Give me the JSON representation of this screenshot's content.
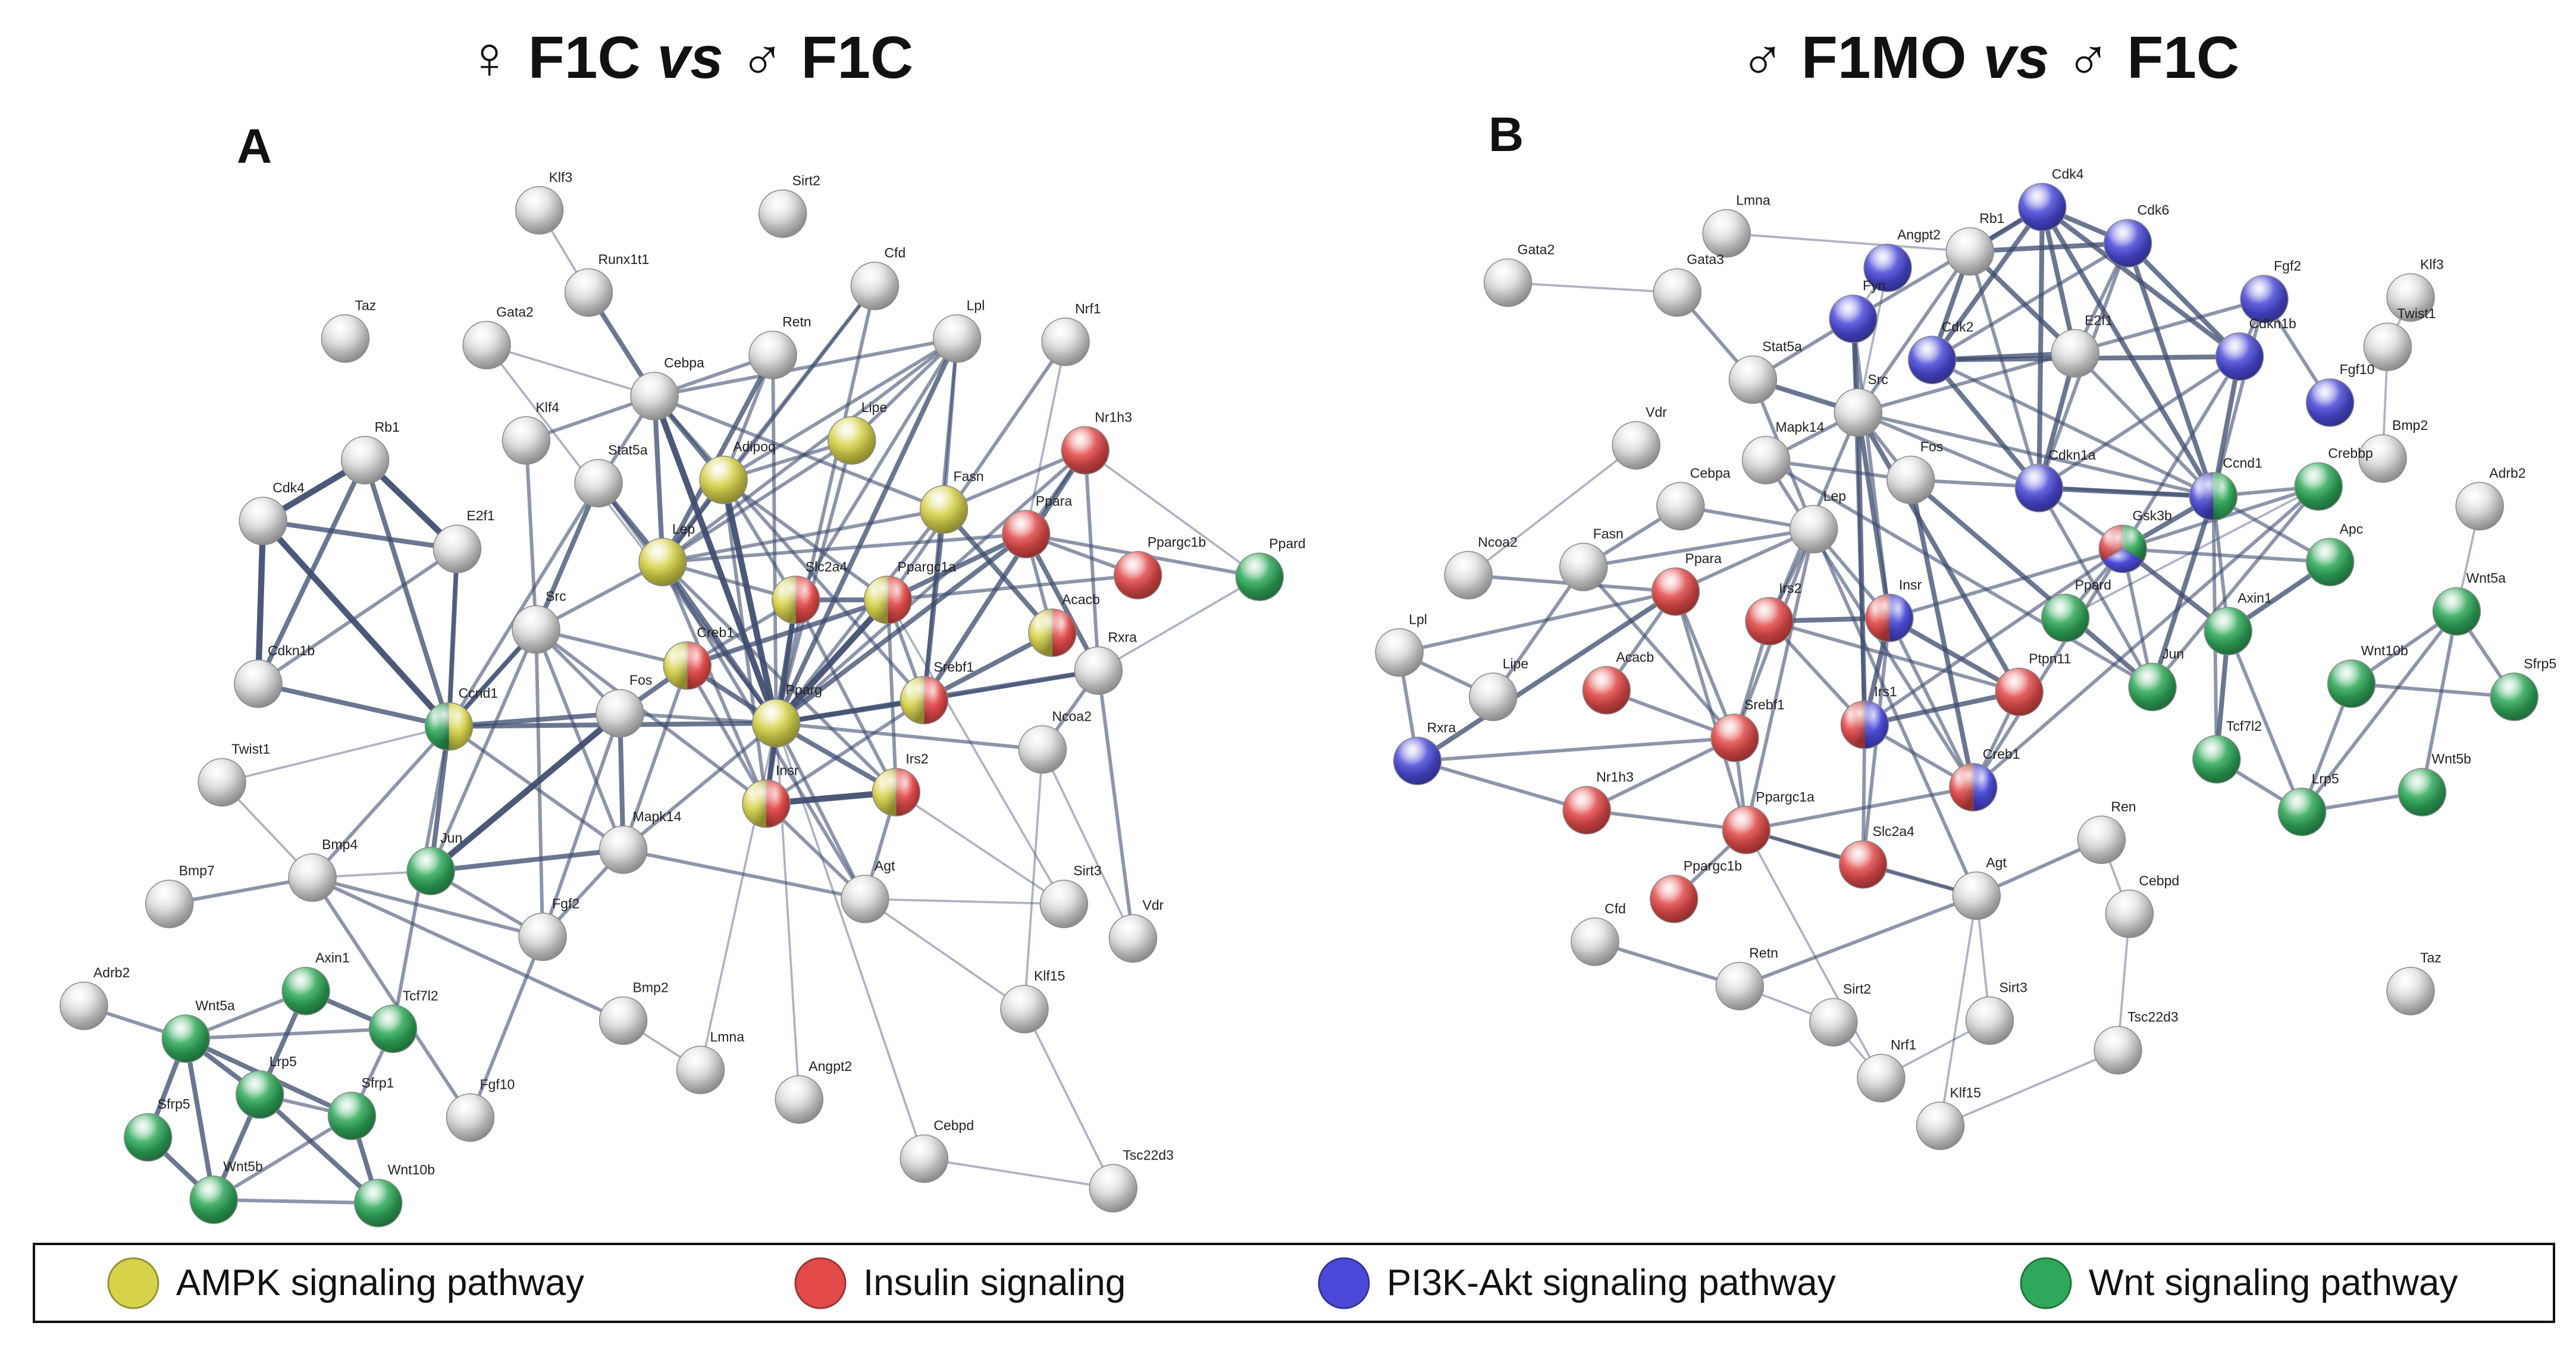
{
  "panels": [
    {
      "letter": "A",
      "title": {
        "sym1": "♀",
        "pre": "F1C",
        "vs": "vs",
        "sym2": "♂",
        "post": "F1C"
      },
      "nodes": [
        {
          "id": "Klf3",
          "color": "gray"
        },
        {
          "id": "Sirt2",
          "color": "gray"
        },
        {
          "id": "Runx1t1",
          "color": "gray"
        },
        {
          "id": "Taz",
          "color": "gray"
        },
        {
          "id": "Gata2",
          "color": "gray"
        },
        {
          "id": "Cfd",
          "color": "gray"
        },
        {
          "id": "Retn",
          "color": "gray"
        },
        {
          "id": "Lpl",
          "color": "gray"
        },
        {
          "id": "Nrf1",
          "color": "gray"
        },
        {
          "id": "Cebpa",
          "color": "gray"
        },
        {
          "id": "Klf4",
          "color": "gray"
        },
        {
          "id": "Lipe",
          "color": "yellow"
        },
        {
          "id": "Adipoq",
          "color": "yellow"
        },
        {
          "id": "Nr1h3",
          "color": "red"
        },
        {
          "id": "Rb1",
          "color": "gray"
        },
        {
          "id": "Stat5a",
          "color": "gray"
        },
        {
          "id": "Fasn",
          "color": "yellow"
        },
        {
          "id": "Ppara",
          "color": "red"
        },
        {
          "id": "Ppargc1b",
          "color": "red"
        },
        {
          "id": "Ppard",
          "color": "green"
        },
        {
          "id": "Cdk4",
          "color": "gray"
        },
        {
          "id": "E2f1",
          "color": "gray"
        },
        {
          "id": "Lep",
          "color": "yellow"
        },
        {
          "id": "Slc2a4",
          "color": "yellow-red"
        },
        {
          "id": "Ppargc1a",
          "color": "yellow-red"
        },
        {
          "id": "Src",
          "color": "gray"
        },
        {
          "id": "Creb1",
          "color": "yellow-red"
        },
        {
          "id": "Acacb",
          "color": "yellow-red"
        },
        {
          "id": "Rxra",
          "color": "gray"
        },
        {
          "id": "Cdkn1b",
          "color": "gray"
        },
        {
          "id": "Fos",
          "color": "gray"
        },
        {
          "id": "Srebf1",
          "color": "yellow-red"
        },
        {
          "id": "Ccnd1",
          "color": "green-yellow"
        },
        {
          "id": "Pparg",
          "color": "yellow"
        },
        {
          "id": "Ncoa2",
          "color": "gray"
        },
        {
          "id": "Twist1",
          "color": "gray"
        },
        {
          "id": "Insr",
          "color": "yellow-red"
        },
        {
          "id": "Irs2",
          "color": "yellow-red"
        },
        {
          "id": "Mapk14",
          "color": "gray"
        },
        {
          "id": "Bmp4",
          "color": "gray"
        },
        {
          "id": "Jun",
          "color": "green"
        },
        {
          "id": "Bmp7",
          "color": "gray"
        },
        {
          "id": "Agt",
          "color": "gray"
        },
        {
          "id": "Sirt3",
          "color": "gray"
        },
        {
          "id": "Fgf2",
          "color": "gray"
        },
        {
          "id": "Vdr",
          "color": "gray"
        },
        {
          "id": "Adrb2",
          "color": "gray"
        },
        {
          "id": "Axin1",
          "color": "green"
        },
        {
          "id": "Tcf7l2",
          "color": "green"
        },
        {
          "id": "Klf15",
          "color": "gray"
        },
        {
          "id": "Wnt5a",
          "color": "green"
        },
        {
          "id": "Bmp2",
          "color": "gray"
        },
        {
          "id": "Lrp5",
          "color": "green"
        },
        {
          "id": "Sfrp1",
          "color": "green"
        },
        {
          "id": "Lmna",
          "color": "gray"
        },
        {
          "id": "Angpt2",
          "color": "gray"
        },
        {
          "id": "Fgf10",
          "color": "gray"
        },
        {
          "id": "Sfrp5",
          "color": "green"
        },
        {
          "id": "Cebpd",
          "color": "gray"
        },
        {
          "id": "Wnt5b",
          "color": "green"
        },
        {
          "id": "Wnt10b",
          "color": "green"
        },
        {
          "id": "Tsc22d3",
          "color": "gray"
        }
      ]
    },
    {
      "letter": "B",
      "title": {
        "sym1": "♂",
        "pre": "F1MO",
        "vs": "vs",
        "sym2": "♂",
        "post": "F1C"
      },
      "nodes": [
        {
          "id": "Cdk4",
          "color": "blue"
        },
        {
          "id": "Lmna",
          "color": "gray"
        },
        {
          "id": "Cdk6",
          "color": "blue"
        },
        {
          "id": "Rb1",
          "color": "gray"
        },
        {
          "id": "Angpt2",
          "color": "blue"
        },
        {
          "id": "Gata2",
          "color": "gray"
        },
        {
          "id": "Gata3",
          "color": "gray"
        },
        {
          "id": "Fyn",
          "color": "blue"
        },
        {
          "id": "Fgf2",
          "color": "blue"
        },
        {
          "id": "Klf3",
          "color": "gray"
        },
        {
          "id": "Twist1",
          "color": "gray"
        },
        {
          "id": "E2f1",
          "color": "gray"
        },
        {
          "id": "Cdk2",
          "color": "blue"
        },
        {
          "id": "Cdkn1b",
          "color": "blue"
        },
        {
          "id": "Stat5a",
          "color": "gray"
        },
        {
          "id": "Src",
          "color": "gray"
        },
        {
          "id": "Fgf10",
          "color": "blue"
        },
        {
          "id": "Vdr",
          "color": "gray"
        },
        {
          "id": "Mapk14",
          "color": "gray"
        },
        {
          "id": "Bmp2",
          "color": "gray"
        },
        {
          "id": "Fos",
          "color": "gray"
        },
        {
          "id": "Cdkn1a",
          "color": "blue"
        },
        {
          "id": "Ccnd1",
          "color": "blue-green"
        },
        {
          "id": "Crebbp",
          "color": "green"
        },
        {
          "id": "Adrb2",
          "color": "gray"
        },
        {
          "id": "Cebpa",
          "color": "gray"
        },
        {
          "id": "Fasn",
          "color": "gray"
        },
        {
          "id": "Lep",
          "color": "gray"
        },
        {
          "id": "Gsk3b",
          "color": "multi"
        },
        {
          "id": "Ncoa2",
          "color": "gray"
        },
        {
          "id": "Ppara",
          "color": "red"
        },
        {
          "id": "Apc",
          "color": "green"
        },
        {
          "id": "Wnt5a",
          "color": "green"
        },
        {
          "id": "Irs2",
          "color": "red"
        },
        {
          "id": "Insr",
          "color": "red-blue"
        },
        {
          "id": "Ppard",
          "color": "green"
        },
        {
          "id": "Axin1",
          "color": "green"
        },
        {
          "id": "Lpl",
          "color": "gray"
        },
        {
          "id": "Lipe",
          "color": "gray"
        },
        {
          "id": "Acacb",
          "color": "red"
        },
        {
          "id": "Ptpn11",
          "color": "red"
        },
        {
          "id": "Jun",
          "color": "green"
        },
        {
          "id": "Wnt10b",
          "color": "green"
        },
        {
          "id": "Sfrp5",
          "color": "green"
        },
        {
          "id": "Srebf1",
          "color": "red"
        },
        {
          "id": "Irs1",
          "color": "red-blue"
        },
        {
          "id": "Rxra",
          "color": "blue"
        },
        {
          "id": "Tcf7l2",
          "color": "green"
        },
        {
          "id": "Creb1",
          "color": "red-blue"
        },
        {
          "id": "Wnt5b",
          "color": "green"
        },
        {
          "id": "Nr1h3",
          "color": "red"
        },
        {
          "id": "Lrp5",
          "color": "green"
        },
        {
          "id": "Ppargc1a",
          "color": "red"
        },
        {
          "id": "Ren",
          "color": "gray"
        },
        {
          "id": "Slc2a4",
          "color": "red"
        },
        {
          "id": "Agt",
          "color": "gray"
        },
        {
          "id": "Ppargc1b",
          "color": "red"
        },
        {
          "id": "Cebpd",
          "color": "gray"
        },
        {
          "id": "Cfd",
          "color": "gray"
        },
        {
          "id": "Taz",
          "color": "gray"
        },
        {
          "id": "Retn",
          "color": "gray"
        },
        {
          "id": "Sirt2",
          "color": "gray"
        },
        {
          "id": "Sirt3",
          "color": "gray"
        },
        {
          "id": "Tsc22d3",
          "color": "gray"
        },
        {
          "id": "Nrf1",
          "color": "gray"
        },
        {
          "id": "Klf15",
          "color": "gray"
        }
      ]
    }
  ],
  "legend": [
    {
      "label": "AMPK signaling pathway",
      "color": "yellow"
    },
    {
      "label": "Insulin signaling",
      "color": "red"
    },
    {
      "label": "PI3K-Akt signaling pathway",
      "color": "blue"
    },
    {
      "label": "Wnt signaling pathway",
      "color": "green"
    }
  ],
  "colors": {
    "gray": "#d9d9d9",
    "yellow": "#d6d24a",
    "red": "#e24a4a",
    "blue": "#4b4ad8",
    "green": "#2fa85a",
    "edge": "#3d4b6e"
  }
}
